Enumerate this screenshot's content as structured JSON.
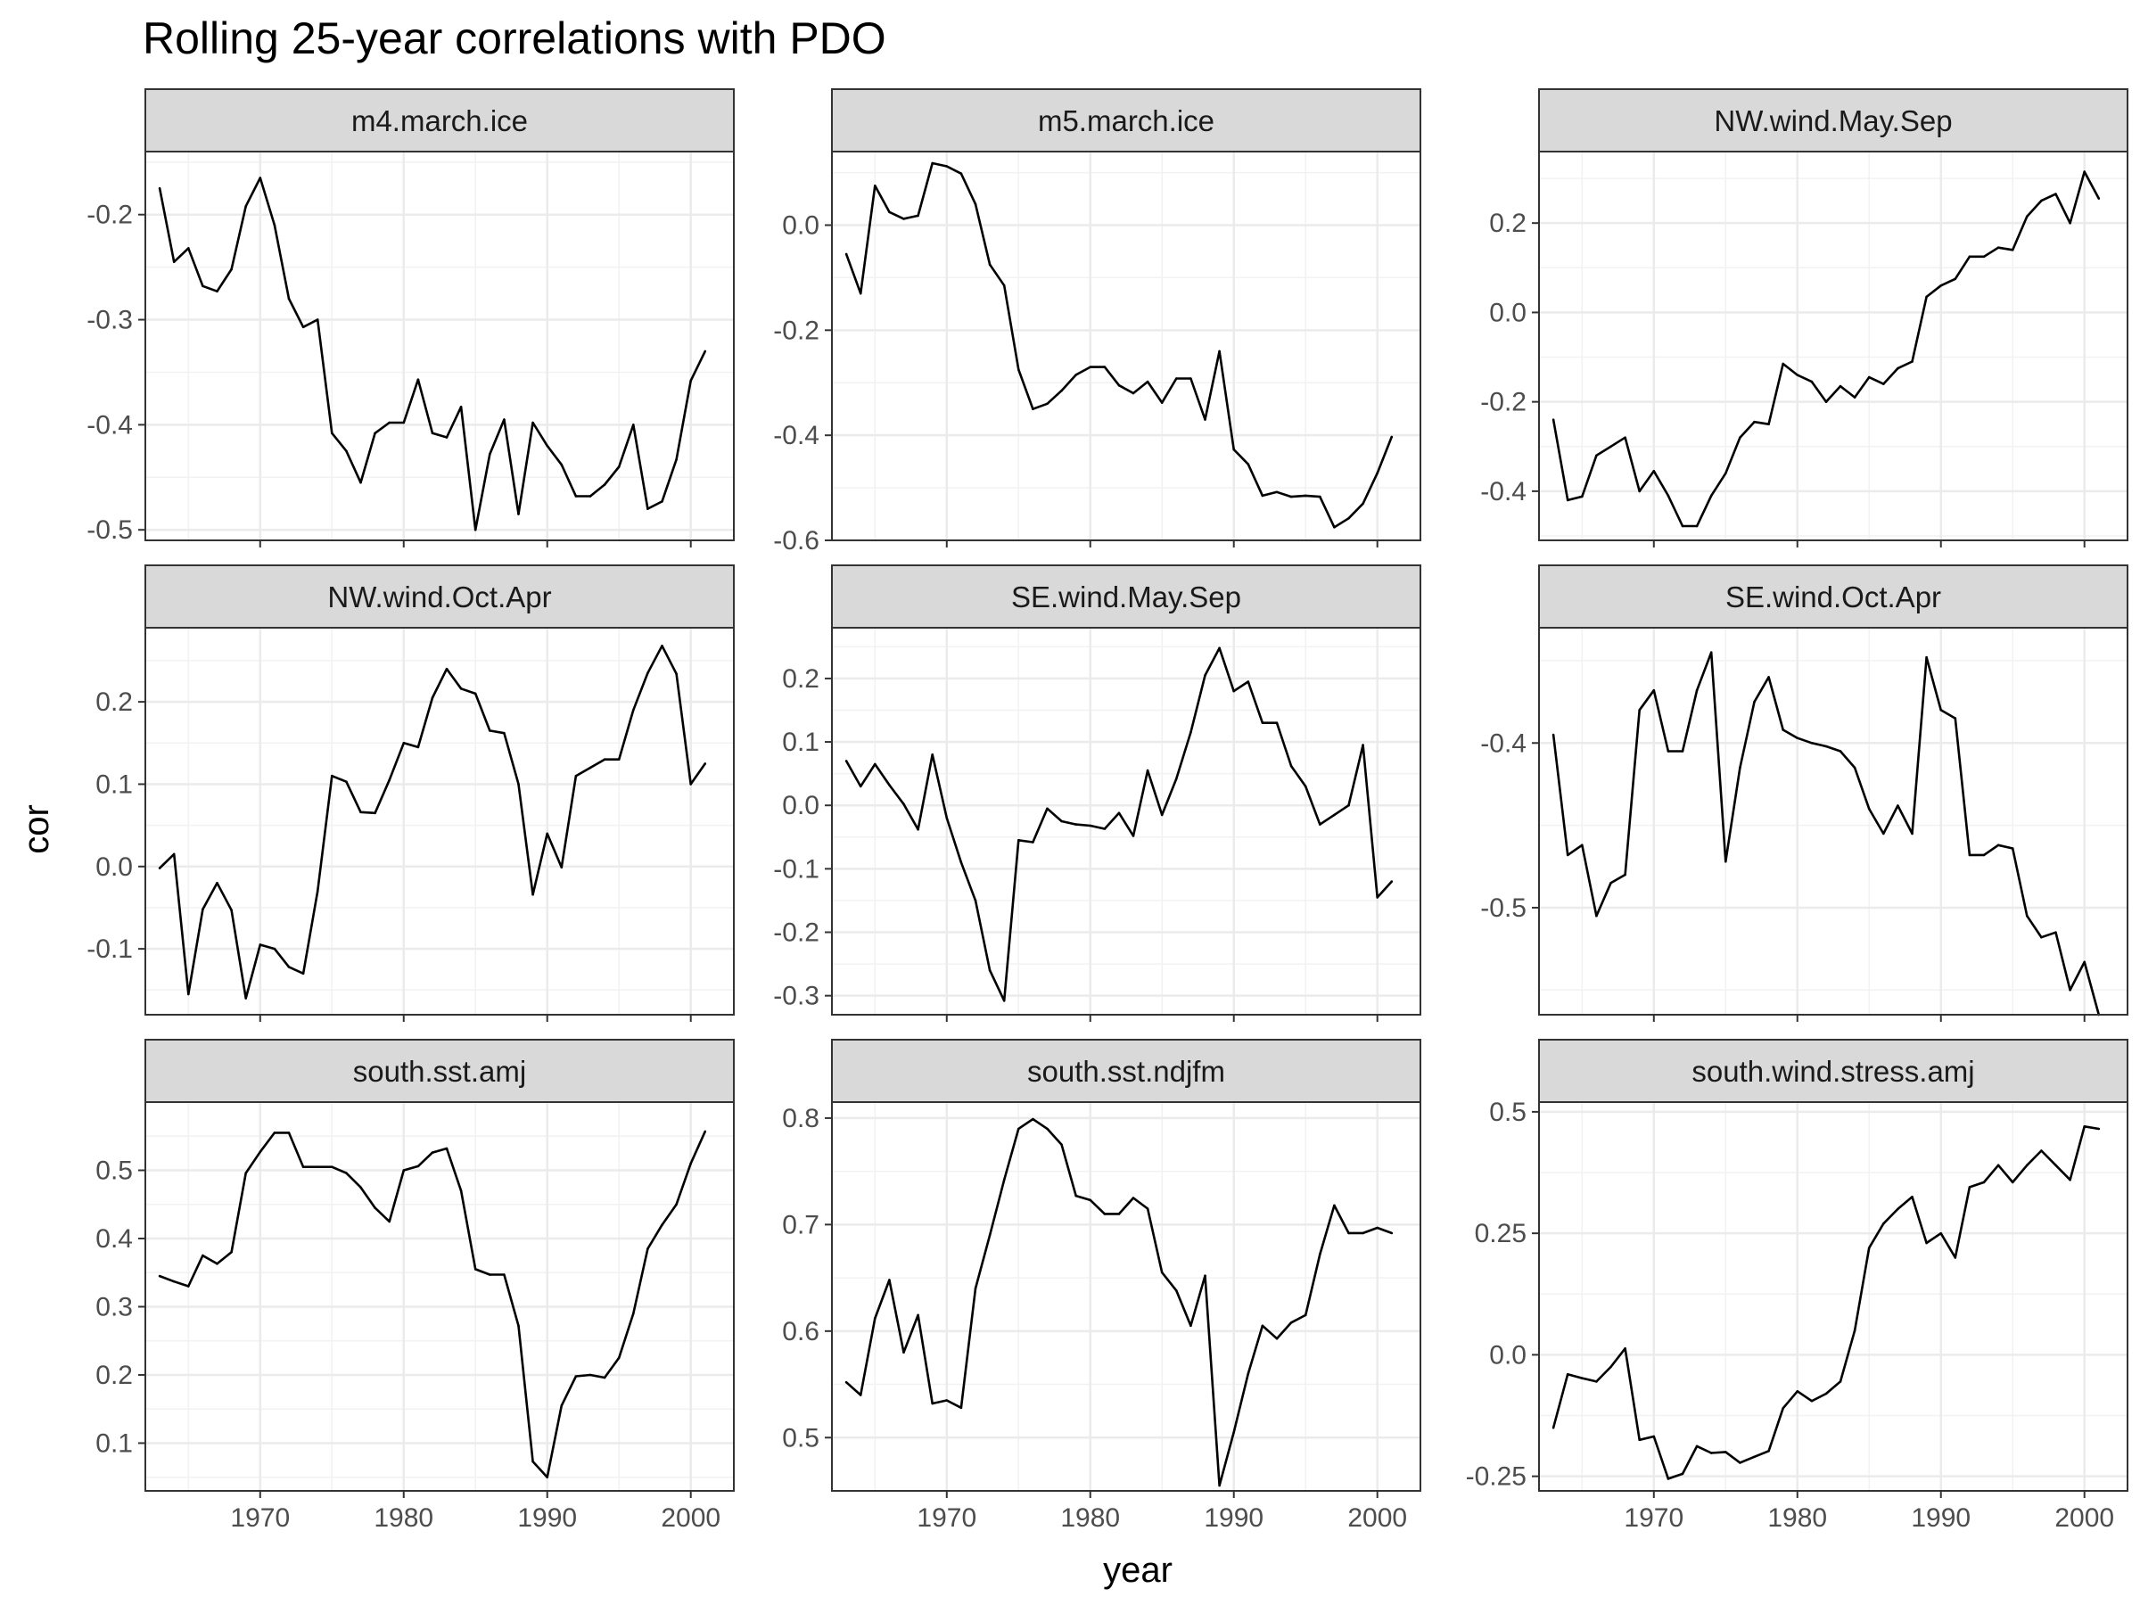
{
  "chart_data": {
    "type": "line",
    "title": "Rolling 25-year correlations with PDO",
    "xlabel": "year",
    "ylabel": "cor",
    "grid": true,
    "legend": "none",
    "line_color": "#000000",
    "strip_fill": "#d9d9d9",
    "x_ticks": [
      1970,
      1980,
      1990,
      2000
    ],
    "xlim": [
      1962,
      2003
    ],
    "x": [
      1963,
      1964,
      1965,
      1966,
      1967,
      1968,
      1969,
      1970,
      1971,
      1972,
      1973,
      1974,
      1975,
      1976,
      1977,
      1978,
      1979,
      1980,
      1981,
      1982,
      1983,
      1984,
      1985,
      1986,
      1987,
      1988,
      1989,
      1990,
      1991,
      1992,
      1993,
      1994,
      1995,
      1996,
      1997,
      1998,
      1999,
      2000,
      2001
    ],
    "panels": [
      {
        "name": "m4.march.ice",
        "ylim": [
          -0.51,
          -0.14
        ],
        "yticks": [
          -0.5,
          -0.4,
          -0.3,
          -0.2
        ],
        "values": [
          -0.175,
          -0.245,
          -0.232,
          -0.268,
          -0.273,
          -0.252,
          -0.192,
          -0.165,
          -0.21,
          -0.28,
          -0.307,
          -0.3,
          -0.408,
          -0.425,
          -0.455,
          -0.408,
          -0.398,
          -0.398,
          -0.357,
          -0.408,
          -0.412,
          -0.383,
          -0.5,
          -0.428,
          -0.395,
          -0.485,
          -0.398,
          -0.42,
          -0.438,
          -0.468,
          -0.468,
          -0.457,
          -0.44,
          -0.4,
          -0.48,
          -0.473,
          -0.433,
          -0.358,
          -0.33
        ]
      },
      {
        "name": "m5.march.ice",
        "ylim": [
          -0.6,
          0.14
        ],
        "yticks": [
          -0.6,
          -0.4,
          -0.2,
          0.0
        ],
        "values": [
          -0.055,
          -0.13,
          0.075,
          0.025,
          0.012,
          0.018,
          0.118,
          0.112,
          0.098,
          0.04,
          -0.075,
          -0.115,
          -0.275,
          -0.35,
          -0.34,
          -0.315,
          -0.285,
          -0.27,
          -0.27,
          -0.305,
          -0.32,
          -0.298,
          -0.338,
          -0.292,
          -0.292,
          -0.37,
          -0.24,
          -0.427,
          -0.455,
          -0.515,
          -0.508,
          -0.517,
          -0.515,
          -0.517,
          -0.575,
          -0.558,
          -0.53,
          -0.472,
          -0.403
        ]
      },
      {
        "name": "NW.wind.May.Sep",
        "ylim": [
          -0.51,
          0.36
        ],
        "yticks": [
          -0.4,
          -0.2,
          0.0,
          0.2
        ],
        "values": [
          -0.24,
          -0.42,
          -0.412,
          -0.32,
          -0.3,
          -0.28,
          -0.4,
          -0.355,
          -0.41,
          -0.478,
          -0.478,
          -0.41,
          -0.36,
          -0.28,
          -0.245,
          -0.25,
          -0.115,
          -0.14,
          -0.155,
          -0.2,
          -0.165,
          -0.19,
          -0.145,
          -0.16,
          -0.125,
          -0.11,
          0.035,
          0.06,
          0.075,
          0.125,
          0.125,
          0.145,
          0.14,
          0.215,
          0.25,
          0.265,
          0.2,
          0.315,
          0.255
        ]
      },
      {
        "name": "NW.wind.Oct.Apr",
        "ylim": [
          -0.18,
          0.29
        ],
        "yticks": [
          -0.1,
          0.0,
          0.1,
          0.2
        ],
        "values": [
          -0.002,
          0.015,
          -0.155,
          -0.052,
          -0.02,
          -0.053,
          -0.16,
          -0.095,
          -0.1,
          -0.122,
          -0.13,
          -0.03,
          0.11,
          0.103,
          0.066,
          0.065,
          0.105,
          0.15,
          0.145,
          0.205,
          0.24,
          0.216,
          0.21,
          0.165,
          0.162,
          0.1,
          -0.034,
          0.04,
          -0.001,
          0.11,
          0.12,
          0.13,
          0.13,
          0.19,
          0.235,
          0.268,
          0.234,
          0.1,
          0.125
        ]
      },
      {
        "name": "SE.wind.May.Sep",
        "ylim": [
          -0.33,
          0.28
        ],
        "yticks": [
          -0.3,
          -0.2,
          -0.1,
          0.0,
          0.1,
          0.2
        ],
        "values": [
          0.07,
          0.03,
          0.065,
          0.032,
          0.002,
          -0.038,
          0.08,
          -0.02,
          -0.09,
          -0.15,
          -0.26,
          -0.308,
          -0.055,
          -0.058,
          -0.005,
          -0.025,
          -0.03,
          -0.032,
          -0.037,
          -0.012,
          -0.048,
          0.055,
          -0.015,
          0.042,
          0.115,
          0.205,
          0.248,
          0.18,
          0.195,
          0.13,
          0.13,
          0.062,
          0.03,
          -0.03,
          -0.015,
          0.0,
          0.095,
          -0.145,
          -0.12
        ]
      },
      {
        "name": "SE.wind.Oct.Apr",
        "ylim": [
          -0.565,
          -0.33
        ],
        "yticks": [
          -0.5,
          -0.4
        ],
        "values": [
          -0.395,
          -0.468,
          -0.462,
          -0.505,
          -0.485,
          -0.48,
          -0.38,
          -0.368,
          -0.405,
          -0.405,
          -0.368,
          -0.345,
          -0.472,
          -0.415,
          -0.375,
          -0.36,
          -0.392,
          -0.397,
          -0.4,
          -0.402,
          -0.405,
          -0.415,
          -0.44,
          -0.455,
          -0.438,
          -0.455,
          -0.348,
          -0.38,
          -0.385,
          -0.468,
          -0.468,
          -0.462,
          -0.464,
          -0.505,
          -0.518,
          -0.515,
          -0.55,
          -0.533,
          -0.565
        ]
      },
      {
        "name": "south.sst.amj",
        "ylim": [
          0.03,
          0.6
        ],
        "yticks": [
          0.1,
          0.2,
          0.3,
          0.4,
          0.5
        ],
        "values": [
          0.345,
          0.337,
          0.33,
          0.375,
          0.363,
          0.38,
          0.496,
          0.527,
          0.555,
          0.555,
          0.505,
          0.505,
          0.505,
          0.496,
          0.475,
          0.445,
          0.425,
          0.5,
          0.506,
          0.526,
          0.532,
          0.47,
          0.355,
          0.347,
          0.347,
          0.272,
          0.073,
          0.05,
          0.155,
          0.198,
          0.2,
          0.196,
          0.225,
          0.29,
          0.385,
          0.42,
          0.45,
          0.51,
          0.557
        ]
      },
      {
        "name": "south.sst.ndjfm",
        "ylim": [
          0.45,
          0.815
        ],
        "yticks": [
          0.5,
          0.6,
          0.7,
          0.8
        ],
        "values": [
          0.552,
          0.54,
          0.612,
          0.648,
          0.58,
          0.615,
          0.532,
          0.535,
          0.528,
          0.64,
          0.69,
          0.742,
          0.79,
          0.799,
          0.79,
          0.775,
          0.727,
          0.723,
          0.71,
          0.71,
          0.725,
          0.715,
          0.655,
          0.638,
          0.605,
          0.652,
          0.455,
          0.505,
          0.56,
          0.605,
          0.593,
          0.608,
          0.615,
          0.672,
          0.718,
          0.692,
          0.692,
          0.697,
          0.692
        ]
      },
      {
        "name": "south.wind.stress.amj",
        "ylim": [
          -0.28,
          0.52
        ],
        "yticks": [
          -0.25,
          0.0,
          0.25,
          0.5
        ],
        "values": [
          -0.15,
          -0.04,
          -0.048,
          -0.055,
          -0.025,
          0.013,
          -0.175,
          -0.168,
          -0.255,
          -0.245,
          -0.188,
          -0.202,
          -0.2,
          -0.222,
          -0.21,
          -0.198,
          -0.11,
          -0.075,
          -0.095,
          -0.08,
          -0.055,
          0.05,
          0.22,
          0.27,
          0.3,
          0.325,
          0.23,
          0.25,
          0.2,
          0.345,
          0.355,
          0.39,
          0.355,
          0.39,
          0.42,
          0.39,
          0.36,
          0.47,
          0.465
        ]
      }
    ]
  }
}
